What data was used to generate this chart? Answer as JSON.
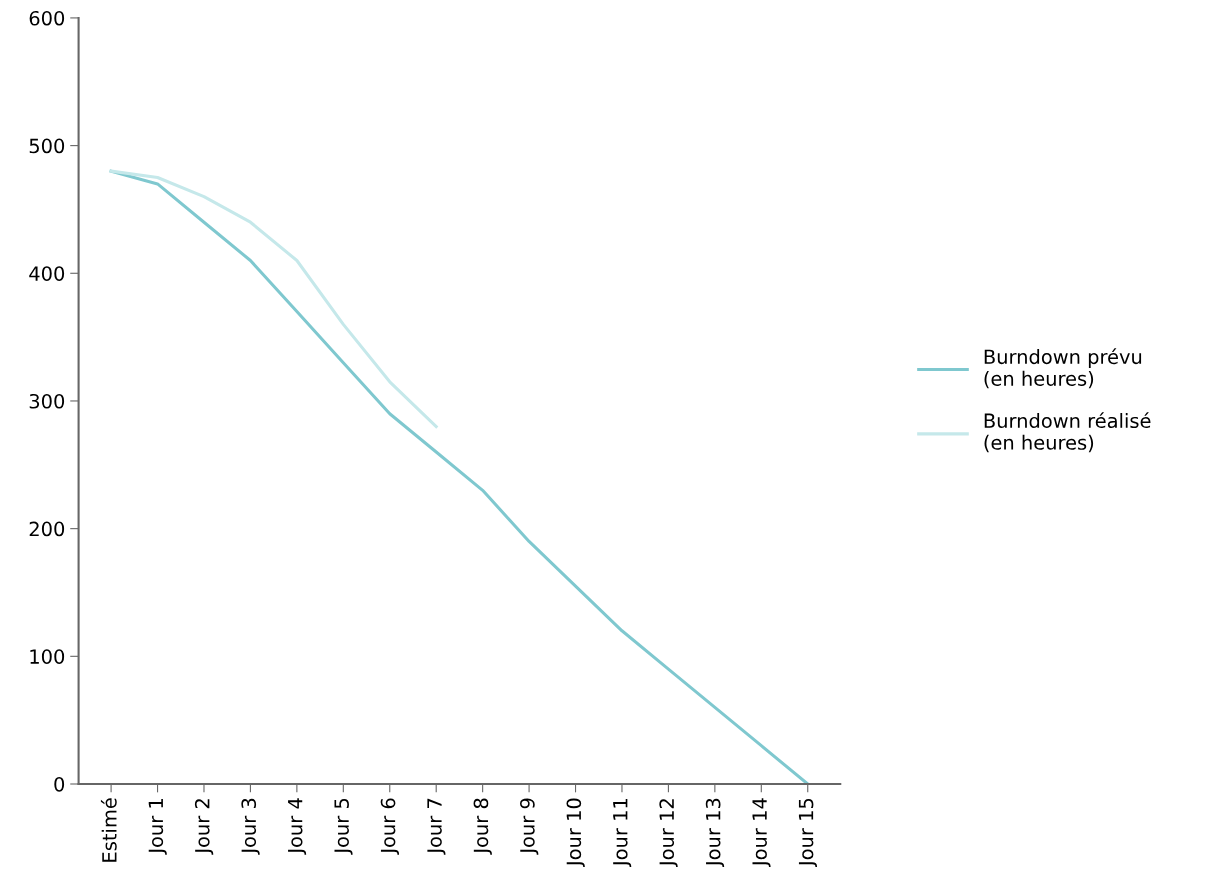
{
  "chart_data": {
    "type": "line",
    "categories": [
      "Estimé",
      "Jour 1",
      "Jour 2",
      "Jour 3",
      "Jour 4",
      "Jour 5",
      "Jour 6",
      "Jour 7",
      "Jour 8",
      "Jour 9",
      "Jour 10",
      "Jour 11",
      "Jour 12",
      "Jour 13",
      "Jour 14",
      "Jour 15"
    ],
    "series": [
      {
        "name": "Burndown prévu\n(en heures)",
        "color": "#7fc8cf",
        "values": [
          480,
          470,
          440,
          410,
          370,
          330,
          290,
          260,
          230,
          190,
          155,
          120,
          90,
          60,
          30,
          0
        ]
      },
      {
        "name": "Burndown réalisé\n(en heures)",
        "color": "#c5e8ea",
        "values": [
          480,
          475,
          460,
          440,
          410,
          360,
          315,
          280,
          null,
          null,
          null,
          null,
          null,
          null,
          null,
          null
        ]
      }
    ],
    "ylim": [
      0,
      600
    ],
    "yticks": [
      0,
      100,
      200,
      300,
      400,
      500,
      600
    ],
    "grid": false,
    "legend": "right",
    "marker": "none",
    "line_style": "solid"
  }
}
